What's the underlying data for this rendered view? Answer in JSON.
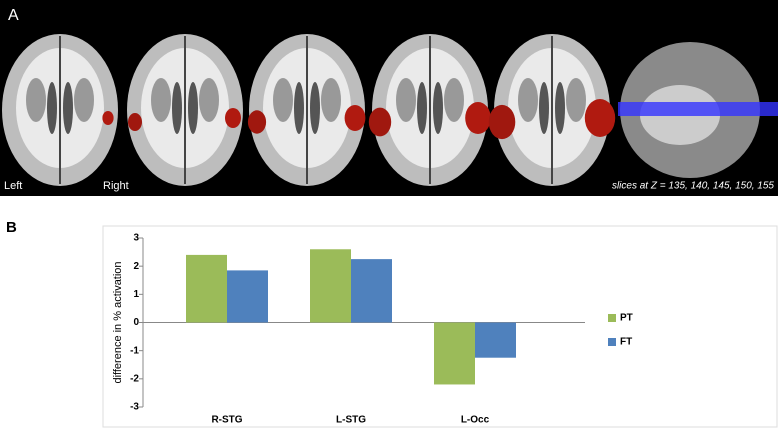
{
  "panel_a": {
    "label": "A",
    "left_label": "Left",
    "right_label": "Right",
    "caption": "slices at Z = 135, 140, 145, 150, 155"
  },
  "panel_b_label": "B",
  "chart_data": {
    "type": "bar",
    "y_label": "difference in % activation",
    "categories": [
      "R-STG",
      "L-STG",
      "L-Occ"
    ],
    "series": [
      {
        "name": "PT",
        "color": "#9bbb59",
        "values": [
          2.4,
          2.6,
          -2.2
        ]
      },
      {
        "name": "FT",
        "color": "#4f81bd",
        "values": [
          1.85,
          2.25,
          -1.25
        ]
      }
    ],
    "ylim": [
      -3,
      3
    ],
    "yticks": [
      -3,
      -2,
      -1,
      0,
      1,
      2,
      3
    ],
    "legend": "right"
  }
}
